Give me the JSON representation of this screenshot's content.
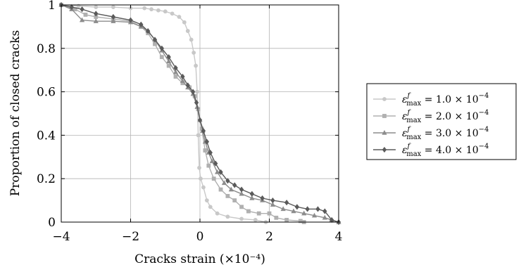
{
  "chart_data": {
    "type": "line",
    "title": "",
    "xlabel": "Cracks strain (×10⁻⁴)",
    "ylabel": "Proportion of closed cracks",
    "xlim": [
      -4,
      4
    ],
    "ylim": [
      0,
      1
    ],
    "xticks": [
      -4,
      -2,
      0,
      2,
      4
    ],
    "yticks": [
      0,
      0.2,
      0.4,
      0.6,
      0.8,
      1
    ],
    "xtick_labels": [
      "−4",
      "−2",
      "0",
      "2",
      "4"
    ],
    "ytick_labels": [
      "0",
      "0.2",
      "0.4",
      "0.6",
      "0.8",
      "1"
    ],
    "grid": true,
    "legend_position": "right",
    "series": [
      {
        "name": "ε^f_max = 1.0 × 10^−4",
        "color": "#c8c8c8",
        "marker": "circle",
        "points": [
          [
            -4.0,
            1.0
          ],
          [
            -3.5,
            0.995
          ],
          [
            -3.0,
            0.99
          ],
          [
            -2.5,
            0.99
          ],
          [
            -2.0,
            0.985
          ],
          [
            -1.6,
            0.985
          ],
          [
            -1.4,
            0.98
          ],
          [
            -1.2,
            0.975
          ],
          [
            -1.0,
            0.97
          ],
          [
            -0.8,
            0.96
          ],
          [
            -0.6,
            0.945
          ],
          [
            -0.45,
            0.92
          ],
          [
            -0.35,
            0.88
          ],
          [
            -0.25,
            0.84
          ],
          [
            -0.18,
            0.78
          ],
          [
            -0.12,
            0.72
          ],
          [
            -0.08,
            0.6
          ],
          [
            -0.05,
            0.4
          ],
          [
            -0.02,
            0.25
          ],
          [
            0.02,
            0.2
          ],
          [
            0.1,
            0.16
          ],
          [
            0.2,
            0.1
          ],
          [
            0.3,
            0.07
          ],
          [
            0.5,
            0.04
          ],
          [
            0.8,
            0.025
          ],
          [
            1.2,
            0.015
          ],
          [
            1.6,
            0.01
          ],
          [
            1.9,
            0.0
          ]
        ]
      },
      {
        "name": "ε^f_max = 2.0 × 10^−4",
        "color": "#b0b0b0",
        "marker": "square",
        "points": [
          [
            -4.0,
            1.0
          ],
          [
            -3.6,
            0.98
          ],
          [
            -3.3,
            0.955
          ],
          [
            -3.0,
            0.945
          ],
          [
            -2.5,
            0.935
          ],
          [
            -2.0,
            0.925
          ],
          [
            -1.7,
            0.9
          ],
          [
            -1.5,
            0.87
          ],
          [
            -1.3,
            0.82
          ],
          [
            -1.1,
            0.76
          ],
          [
            -0.9,
            0.72
          ],
          [
            -0.7,
            0.67
          ],
          [
            -0.5,
            0.64
          ],
          [
            -0.3,
            0.62
          ],
          [
            -0.15,
            0.58
          ],
          [
            -0.05,
            0.52
          ],
          [
            0.05,
            0.43
          ],
          [
            0.15,
            0.33
          ],
          [
            0.25,
            0.26
          ],
          [
            0.4,
            0.2
          ],
          [
            0.6,
            0.15
          ],
          [
            0.8,
            0.12
          ],
          [
            1.0,
            0.1
          ],
          [
            1.2,
            0.07
          ],
          [
            1.4,
            0.05
          ],
          [
            1.7,
            0.04
          ],
          [
            2.0,
            0.04
          ],
          [
            2.2,
            0.02
          ],
          [
            2.5,
            0.01
          ],
          [
            2.9,
            0.005
          ],
          [
            3.0,
            0.0
          ]
        ]
      },
      {
        "name": "ε^f_max = 3.0 × 10^−4",
        "color": "#8c8c8c",
        "marker": "triangle",
        "points": [
          [
            -4.0,
            1.0
          ],
          [
            -3.7,
            0.98
          ],
          [
            -3.4,
            0.93
          ],
          [
            -3.0,
            0.925
          ],
          [
            -2.5,
            0.925
          ],
          [
            -2.0,
            0.92
          ],
          [
            -1.7,
            0.9
          ],
          [
            -1.5,
            0.88
          ],
          [
            -1.3,
            0.84
          ],
          [
            -1.1,
            0.79
          ],
          [
            -0.9,
            0.74
          ],
          [
            -0.7,
            0.69
          ],
          [
            -0.5,
            0.65
          ],
          [
            -0.35,
            0.62
          ],
          [
            -0.2,
            0.59
          ],
          [
            -0.08,
            0.53
          ],
          [
            0.0,
            0.47
          ],
          [
            0.08,
            0.42
          ],
          [
            0.15,
            0.37
          ],
          [
            0.25,
            0.32
          ],
          [
            0.35,
            0.28
          ],
          [
            0.5,
            0.23
          ],
          [
            0.7,
            0.18
          ],
          [
            0.9,
            0.15
          ],
          [
            1.2,
            0.13
          ],
          [
            1.5,
            0.11
          ],
          [
            1.8,
            0.1
          ],
          [
            2.1,
            0.08
          ],
          [
            2.4,
            0.06
          ],
          [
            2.7,
            0.05
          ],
          [
            3.0,
            0.04
          ],
          [
            3.3,
            0.03
          ],
          [
            3.6,
            0.02
          ],
          [
            3.8,
            0.01
          ],
          [
            4.0,
            0.0
          ]
        ]
      },
      {
        "name": "ε^f_max = 4.0 × 10^−4",
        "color": "#5a5a5a",
        "marker": "diamond",
        "points": [
          [
            -4.0,
            1.0
          ],
          [
            -3.7,
            0.99
          ],
          [
            -3.4,
            0.98
          ],
          [
            -3.0,
            0.96
          ],
          [
            -2.5,
            0.945
          ],
          [
            -2.0,
            0.93
          ],
          [
            -1.7,
            0.91
          ],
          [
            -1.5,
            0.88
          ],
          [
            -1.3,
            0.84
          ],
          [
            -1.1,
            0.8
          ],
          [
            -0.9,
            0.76
          ],
          [
            -0.7,
            0.71
          ],
          [
            -0.5,
            0.67
          ],
          [
            -0.35,
            0.63
          ],
          [
            -0.2,
            0.6
          ],
          [
            -0.1,
            0.55
          ],
          [
            0.0,
            0.47
          ],
          [
            0.1,
            0.42
          ],
          [
            0.2,
            0.37
          ],
          [
            0.3,
            0.32
          ],
          [
            0.45,
            0.27
          ],
          [
            0.6,
            0.23
          ],
          [
            0.8,
            0.19
          ],
          [
            1.0,
            0.17
          ],
          [
            1.2,
            0.15
          ],
          [
            1.5,
            0.13
          ],
          [
            1.8,
            0.11
          ],
          [
            2.1,
            0.1
          ],
          [
            2.5,
            0.09
          ],
          [
            2.8,
            0.07
          ],
          [
            3.1,
            0.06
          ],
          [
            3.4,
            0.06
          ],
          [
            3.6,
            0.05
          ],
          [
            3.8,
            0.01
          ],
          [
            4.0,
            0.0
          ]
        ]
      }
    ]
  }
}
